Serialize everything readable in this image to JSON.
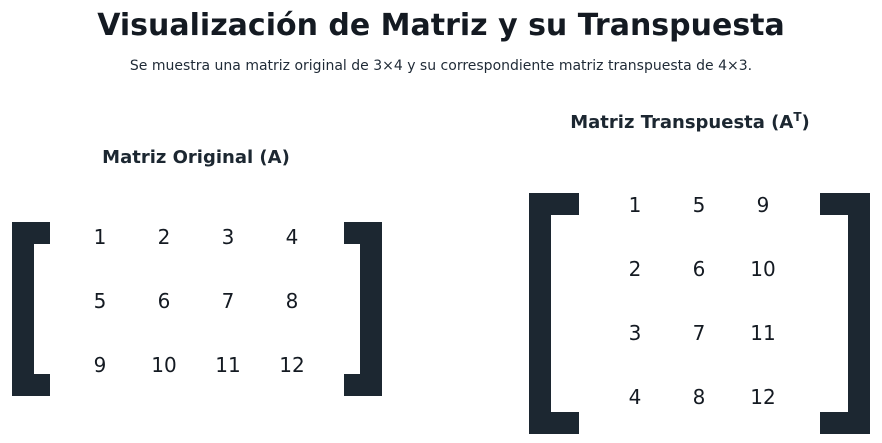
{
  "title": "Visualización de Matriz y su Transpuesta",
  "subtitle": "Se muestra una matriz original de 3×4 y su correspondiente matriz transpuesta de 4×3.",
  "original": {
    "label": "Matriz Original (A)",
    "rows": [
      [
        "1",
        "2",
        "3",
        "4"
      ],
      [
        "5",
        "6",
        "7",
        "8"
      ],
      [
        "9",
        "10",
        "11",
        "12"
      ]
    ]
  },
  "transpose": {
    "label_main": "Matriz Transpuesta (A",
    "label_sup": "T",
    "label_close": ")",
    "rows": [
      [
        "1",
        "5",
        "9"
      ],
      [
        "2",
        "6",
        "10"
      ],
      [
        "3",
        "7",
        "11"
      ],
      [
        "4",
        "8",
        "12"
      ]
    ]
  },
  "colors": {
    "bracket": "#1c2731",
    "text": "#141a22"
  }
}
